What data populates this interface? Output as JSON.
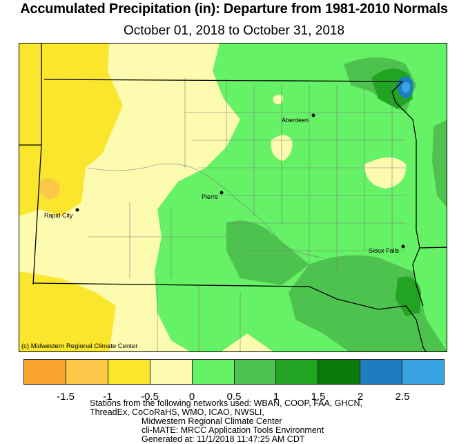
{
  "title": "Accumulated Precipitation (in): Departure from 1981-2010 Normals",
  "subtitle": "October 01, 2018 to October 31, 2018",
  "credit": "(c) Midwestern Regional Climate Center",
  "cities": [
    {
      "name": "Aberdeen"
    },
    {
      "name": "Pierre"
    },
    {
      "name": "Rapid City"
    },
    {
      "name": "Sioux Falls"
    }
  ],
  "legend": {
    "colors": [
      "#f8a42c",
      "#fbc84a",
      "#fbe62e",
      "#fdfbb0",
      "#66f266",
      "#4ec24e",
      "#22a322",
      "#0a7a0a",
      "#1f7cbf",
      "#38a4e4"
    ],
    "ticks": [
      "-1.5",
      "-1",
      "-0.5",
      "0",
      "0.5",
      "1",
      "1.5",
      "2",
      "2.5"
    ]
  },
  "footer": {
    "line1": "Stations from the following networks used: WBAN, COOP, FAA, GHCN,",
    "line2": "ThreadEx, CoCoRaHS, WMO, ICAO, NWSLI,",
    "line3": "Midwestern Regional Climate Center",
    "line4": "cli-MATE: MRCC Application Tools Environment",
    "line5": "Generated at: 11/1/2018 11:47:25 AM CDT"
  }
}
